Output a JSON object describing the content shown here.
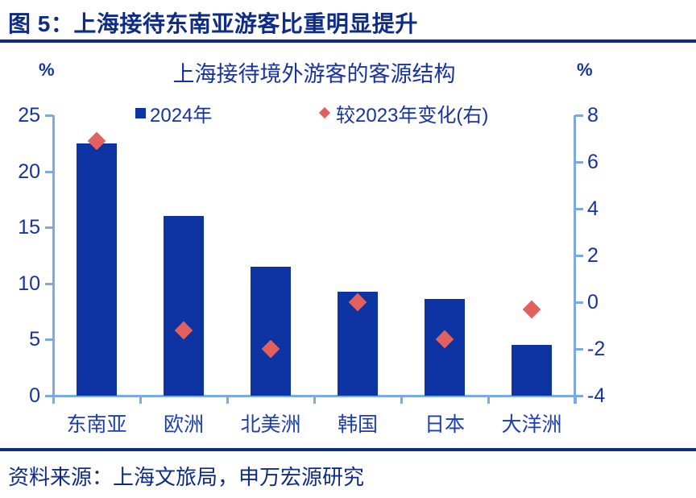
{
  "figure": {
    "header": "图 5：上海接待东南亚游客比重明显提升",
    "source": "资料来源：上海文旅局，申万宏源研究"
  },
  "chart_data": {
    "type": "bar",
    "title": "上海接待境外游客的客源结构",
    "categories": [
      "东南亚",
      "欧洲",
      "北美洲",
      "韩国",
      "日本",
      "大洋洲"
    ],
    "series": [
      {
        "name": "2024年",
        "type": "bar",
        "axis": "left",
        "values": [
          22.5,
          16.0,
          11.5,
          9.3,
          8.6,
          4.5
        ]
      },
      {
        "name": "较2023年变化(右)",
        "type": "scatter",
        "marker": "diamond",
        "axis": "right",
        "values": [
          6.9,
          -1.2,
          -2.0,
          0.0,
          -1.6,
          -0.3
        ]
      }
    ],
    "left_axis": {
      "label": "%",
      "min": 0,
      "max": 25,
      "ticks": [
        0,
        5,
        10,
        15,
        20,
        25
      ]
    },
    "right_axis": {
      "label": "%",
      "min": -4,
      "max": 8,
      "ticks": [
        -4,
        -2,
        0,
        2,
        4,
        6,
        8
      ]
    },
    "legend_position": "top",
    "grid": false
  },
  "colors": {
    "bar": "#0d34a2",
    "marker": "#e2615e",
    "axis_line": "#7ca9e0",
    "header_text": "#0e2c86",
    "chart_text": "#1733a0",
    "category_text": "#1d3eae",
    "divider": "#0e2c86"
  }
}
